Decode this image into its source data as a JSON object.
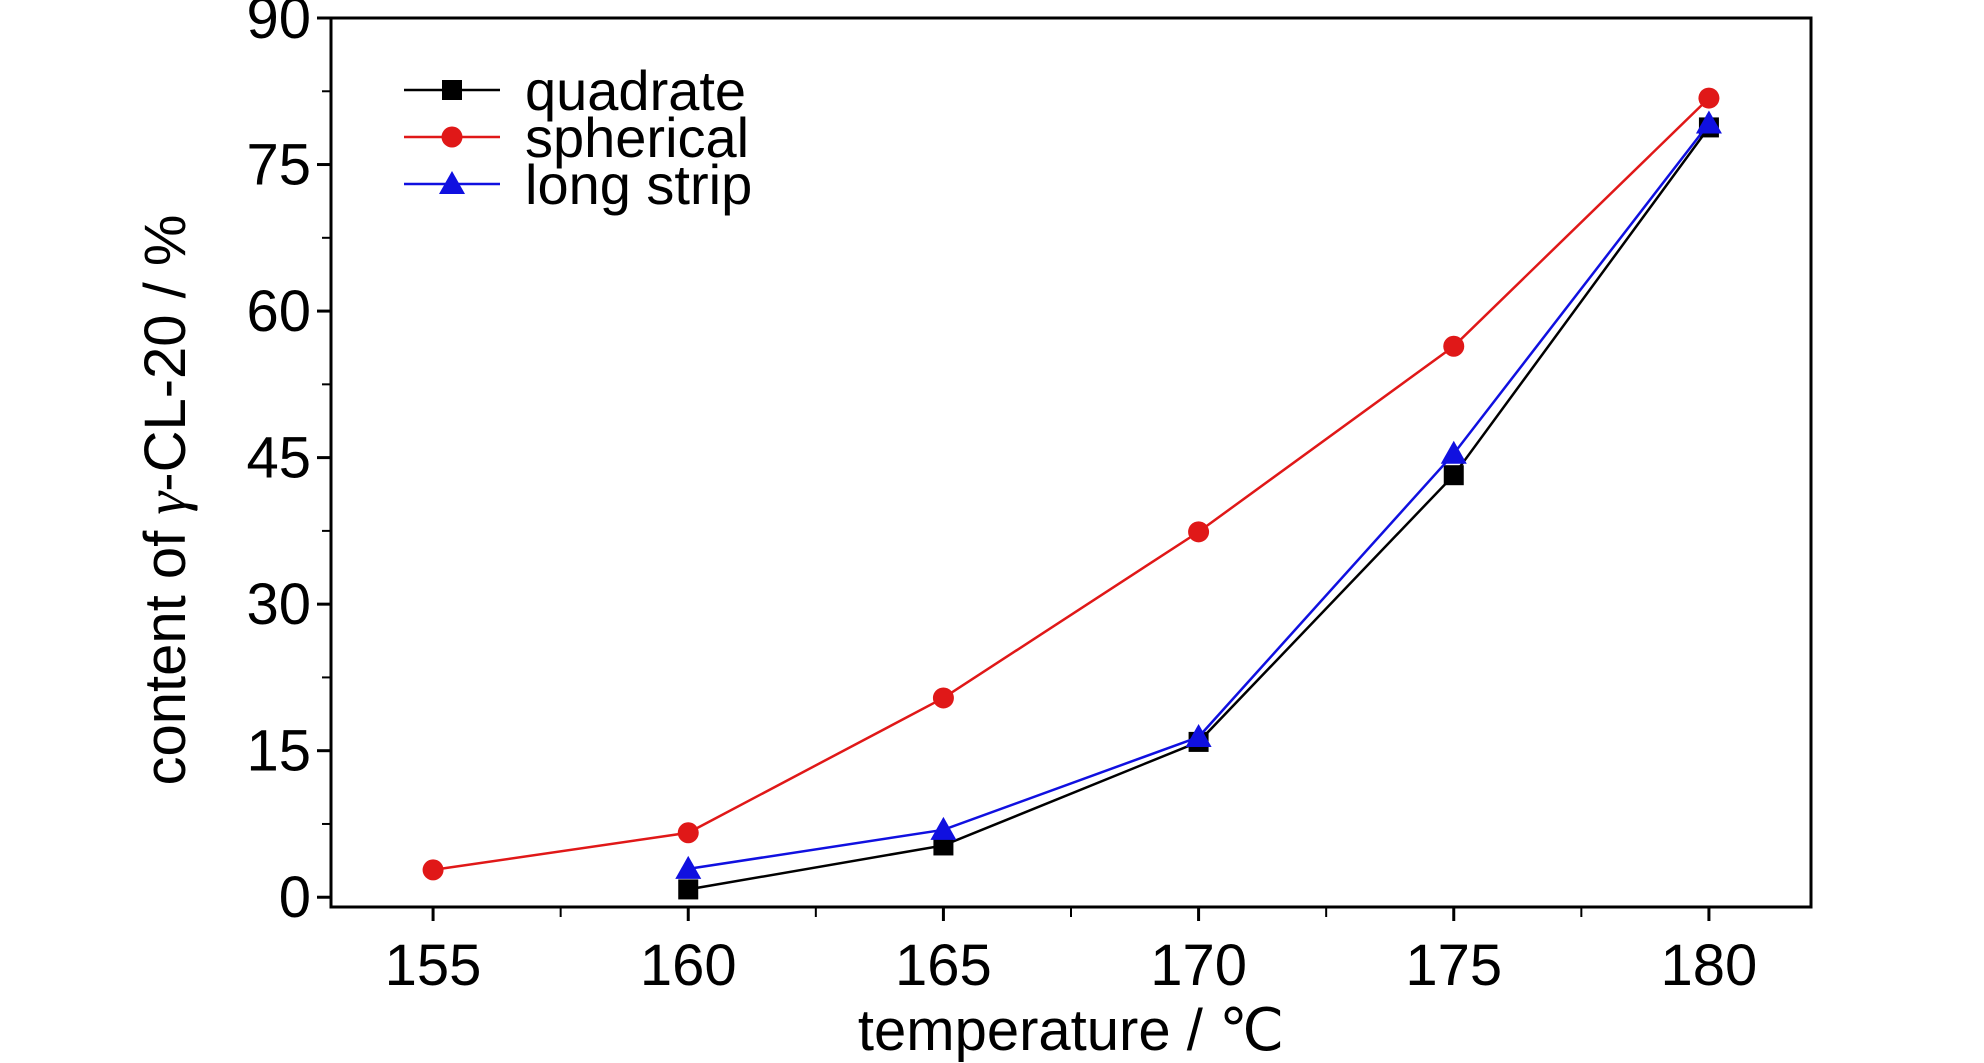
{
  "chart_data": {
    "type": "line",
    "xlabel": "temperature / ℃",
    "ylabel_prefix": "content of ",
    "ylabel_symbol": "γ",
    "ylabel_suffix": "-CL-20 / %",
    "xlim": [
      153,
      182
    ],
    "ylim": [
      -1,
      90
    ],
    "x_ticks": [
      155,
      160,
      165,
      170,
      175,
      180
    ],
    "x_tick_labels": [
      "155",
      "160",
      "165",
      "170",
      "175",
      "180"
    ],
    "x_minor_ticks": [
      157.5,
      162.5,
      167.5,
      172.5,
      177.5
    ],
    "y_ticks": [
      0,
      15,
      30,
      45,
      60,
      75,
      90
    ],
    "y_tick_labels": [
      "0",
      "15",
      "30",
      "45",
      "60",
      "75",
      "90"
    ],
    "y_minor_ticks": [
      7.5,
      22.5,
      37.5,
      52.5,
      67.5,
      82.5
    ],
    "grid": false,
    "legend_position": "top-left",
    "series": [
      {
        "name": "quadrate",
        "marker": "square",
        "color": "#000000",
        "x": [
          160,
          165,
          170,
          175,
          180
        ],
        "y": [
          0.8,
          5.3,
          15.9,
          43.2,
          78.8
        ]
      },
      {
        "name": "spherical",
        "marker": "circle",
        "color": "#e01818",
        "x": [
          155,
          160,
          165,
          170,
          175,
          180
        ],
        "y": [
          2.8,
          6.6,
          20.4,
          37.4,
          56.4,
          81.8
        ]
      },
      {
        "name": "long strip",
        "marker": "triangle",
        "color": "#1010e0",
        "x": [
          160,
          165,
          170,
          175,
          180
        ],
        "y": [
          2.9,
          6.9,
          16.4,
          45.4,
          79.2
        ]
      }
    ]
  }
}
